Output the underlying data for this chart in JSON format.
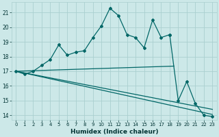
{
  "xlabel": "Humidex (Indice chaleur)",
  "bg_color": "#cce8e8",
  "grid_color": "#aacfcf",
  "line_color": "#006666",
  "xlim": [
    -0.5,
    23.5
  ],
  "ylim": [
    13.7,
    21.7
  ],
  "yticks": [
    14,
    15,
    16,
    17,
    18,
    19,
    20,
    21
  ],
  "xticks": [
    0,
    1,
    2,
    3,
    4,
    5,
    6,
    7,
    8,
    9,
    10,
    11,
    12,
    13,
    14,
    15,
    16,
    17,
    18,
    19,
    20,
    21,
    22,
    23
  ],
  "series1_x": [
    0,
    1,
    2,
    3,
    4,
    5,
    6,
    7,
    8,
    9,
    10,
    11,
    12,
    13,
    14,
    15,
    16,
    17,
    18
  ],
  "series1_y": [
    17.0,
    16.8,
    17.0,
    17.4,
    17.8,
    18.8,
    18.1,
    18.3,
    18.4,
    19.3,
    20.1,
    21.3,
    20.8,
    19.5,
    19.3,
    18.6,
    20.5,
    19.3,
    19.5
  ],
  "series2_x": [
    0,
    1,
    2,
    3,
    4,
    5,
    6,
    7,
    8,
    9,
    10,
    11,
    12,
    13,
    14,
    15,
    16,
    17,
    18,
    19,
    20,
    21,
    22,
    23
  ],
  "series2_y": [
    17.0,
    16.8,
    17.0,
    17.4,
    17.8,
    18.8,
    18.1,
    18.3,
    18.4,
    19.3,
    20.1,
    21.3,
    20.8,
    19.5,
    19.3,
    18.6,
    20.5,
    19.3,
    19.5,
    15.0,
    16.3,
    14.8,
    14.0,
    13.9
  ],
  "trendline1_x": [
    0,
    18.5
  ],
  "trendline1_y": [
    17.0,
    17.35
  ],
  "trendline2_x": [
    0,
    23
  ],
  "trendline2_y": [
    17.0,
    14.05
  ],
  "trendline3_x": [
    0,
    23
  ],
  "trendline3_y": [
    17.0,
    14.4
  ]
}
